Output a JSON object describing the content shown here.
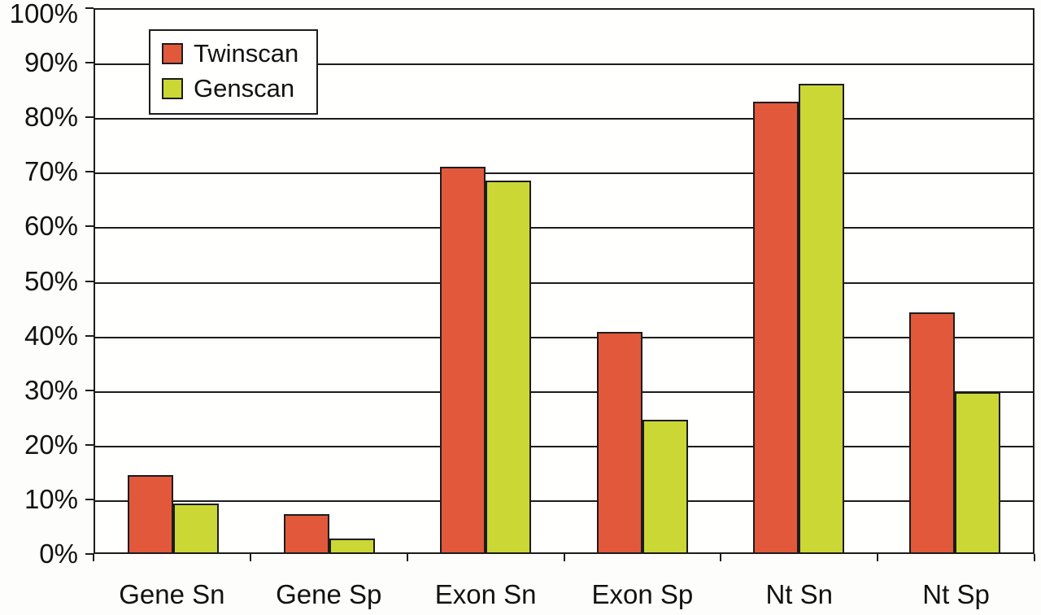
{
  "chart_data": {
    "type": "bar",
    "title": "",
    "categories": [
      "Gene Sn",
      "Gene Sp",
      "Exon Sn",
      "Exon Sp",
      "Nt Sn",
      "Nt Sp"
    ],
    "series": [
      {
        "name": "Twinscan",
        "color": "#E2583B",
        "values": [
          14.2,
          7.1,
          71.0,
          40.6,
          83.0,
          44.2
        ]
      },
      {
        "name": "Genscan",
        "color": "#CBD735",
        "values": [
          9.0,
          2.6,
          68.5,
          24.5,
          86.4,
          29.6
        ]
      }
    ],
    "ylim": [
      0,
      100
    ],
    "y_tick_step": 10,
    "y_ticks": [
      "0%",
      "10%",
      "20%",
      "30%",
      "40%",
      "50%",
      "60%",
      "70%",
      "80%",
      "90%",
      "100%"
    ],
    "grid": true,
    "legend_position": "top-left",
    "colors": {
      "axis": "#1c1c1c",
      "background": "#fdfdfb"
    }
  }
}
